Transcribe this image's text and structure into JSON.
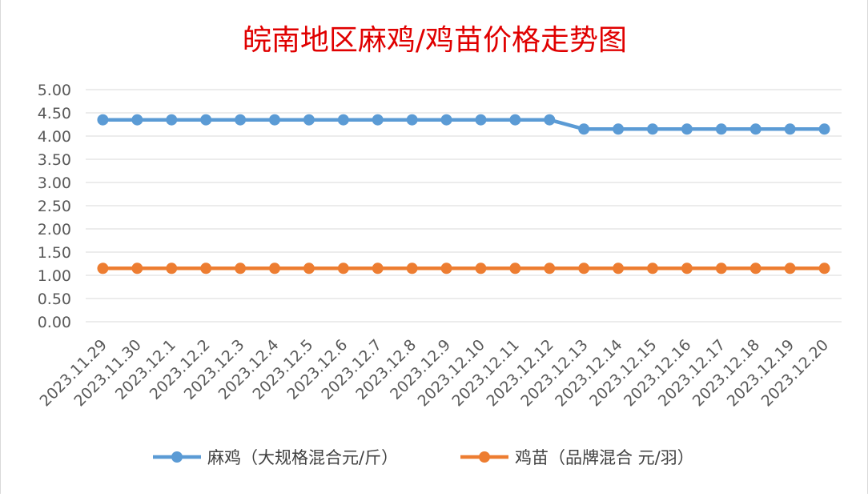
{
  "chart_data": {
    "type": "line",
    "title": "皖南地区麻鸡/鸡苗价格走势图",
    "xlabel": "",
    "ylabel": "",
    "ylim": [
      0,
      5
    ],
    "yticks": [
      "0.00",
      "0.50",
      "1.00",
      "1.50",
      "2.00",
      "2.50",
      "3.00",
      "3.50",
      "4.00",
      "4.50",
      "5.00"
    ],
    "grid": true,
    "legend_position": "bottom",
    "categories": [
      "2023.11.29",
      "2023.11.30",
      "2023.12.1",
      "2023.12.2",
      "2023.12.3",
      "2023.12.4",
      "2023.12.5",
      "2023.12.6",
      "2023.12.7",
      "2023.12.8",
      "2023.12.9",
      "2023.12.10",
      "2023.12.11",
      "2023.12.12",
      "2023.12.13",
      "2023.12.14",
      "2023.12.15",
      "2023.12.16",
      "2023.12.17",
      "2023.12.18",
      "2023.12.19",
      "2023.12.20"
    ],
    "series": [
      {
        "name": "麻鸡（大规格混合元/斤）",
        "color": "#5b9bd5",
        "values": [
          4.35,
          4.35,
          4.35,
          4.35,
          4.35,
          4.35,
          4.35,
          4.35,
          4.35,
          4.35,
          4.35,
          4.35,
          4.35,
          4.35,
          4.15,
          4.15,
          4.15,
          4.15,
          4.15,
          4.15,
          4.15,
          4.15
        ]
      },
      {
        "name": "鸡苗（品牌混合 元/羽）",
        "color": "#ed7d31",
        "values": [
          1.15,
          1.15,
          1.15,
          1.15,
          1.15,
          1.15,
          1.15,
          1.15,
          1.15,
          1.15,
          1.15,
          1.15,
          1.15,
          1.15,
          1.15,
          1.15,
          1.15,
          1.15,
          1.15,
          1.15,
          1.15,
          1.15
        ]
      }
    ]
  }
}
